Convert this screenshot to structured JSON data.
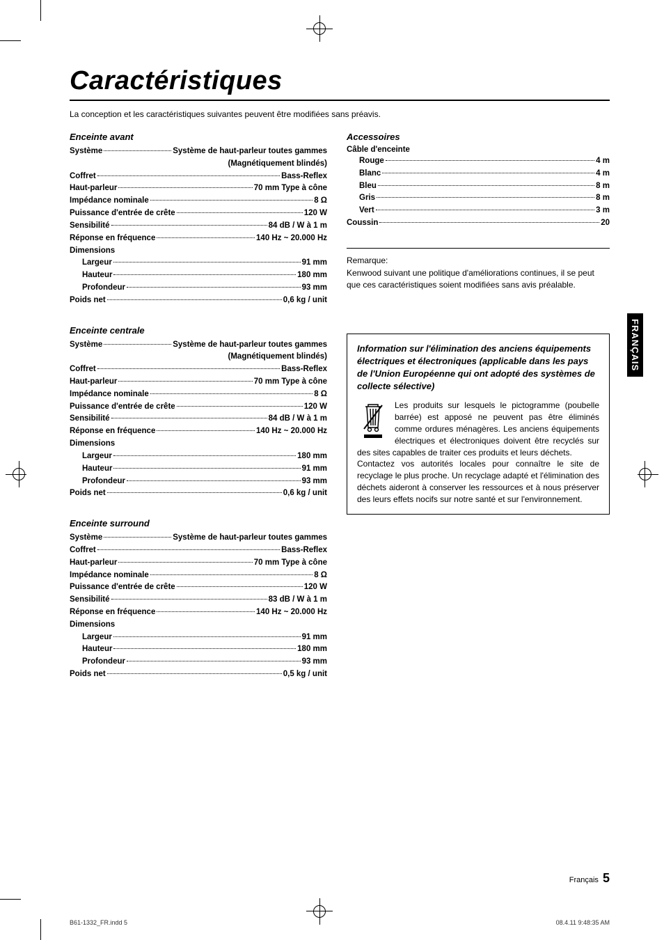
{
  "lang_tab": "FRANÇAIS",
  "title": "Caractéristiques",
  "intro": "La conception et les caractéristiques suivantes peuvent être modifiées sans préavis.",
  "sections": {
    "front": {
      "title": "Enceinte avant",
      "lines": [
        {
          "l": "Système",
          "v": "Système de haut-parleur toutes gammes"
        },
        {
          "right": "(Magnétiquement blindés)"
        },
        {
          "l": "Coffret",
          "v": "Bass-Reflex"
        },
        {
          "l": "Haut-parleur",
          "v": "70 mm Type à cône"
        },
        {
          "l": "Impédance nominale",
          "v": "8 Ω"
        },
        {
          "l": "Puissance d'entrée de crête",
          "v": "120 W"
        },
        {
          "l": "Sensibilité",
          "v": "84 dB / W à 1 m"
        },
        {
          "l": "Réponse en fréquence",
          "v": "140 Hz ~ 20.000 Hz"
        },
        {
          "header": "Dimensions"
        },
        {
          "l": "Largeur",
          "v": "91 mm",
          "indent": true
        },
        {
          "l": "Hauteur",
          "v": "180 mm",
          "indent": true
        },
        {
          "l": "Profondeur",
          "v": "93 mm",
          "indent": true
        },
        {
          "l": "Poids net",
          "v": "0,6 kg / unit"
        }
      ]
    },
    "center": {
      "title": "Enceinte centrale",
      "lines": [
        {
          "l": "Système",
          "v": "Système de haut-parleur toutes gammes"
        },
        {
          "right": "(Magnétiquement blindés)"
        },
        {
          "l": "Coffret",
          "v": "Bass-Reflex"
        },
        {
          "l": "Haut-parleur",
          "v": "70 mm Type à cône"
        },
        {
          "l": "Impédance nominale",
          "v": "8 Ω"
        },
        {
          "l": "Puissance d'entrée de crête",
          "v": "120 W"
        },
        {
          "l": "Sensibilité",
          "v": "84 dB / W à 1 m"
        },
        {
          "l": "Réponse en fréquence",
          "v": "140 Hz ~ 20.000 Hz"
        },
        {
          "header": "Dimensions"
        },
        {
          "l": "Largeur",
          "v": "180 mm",
          "indent": true
        },
        {
          "l": "Hauteur",
          "v": "91 mm",
          "indent": true
        },
        {
          "l": "Profondeur",
          "v": "93 mm",
          "indent": true
        },
        {
          "l": "Poids net",
          "v": "0,6 kg / unit"
        }
      ]
    },
    "surround": {
      "title": "Enceinte surround",
      "lines": [
        {
          "l": "Système",
          "v": "Système de haut-parleur toutes gammes"
        },
        {
          "l": "Coffret",
          "v": "Bass-Reflex"
        },
        {
          "l": "Haut-parleur",
          "v": "70 mm Type à cône"
        },
        {
          "l": "Impédance nominale",
          "v": "8 Ω"
        },
        {
          "l": "Puissance d'entrée de crête",
          "v": "120 W"
        },
        {
          "l": "Sensibilité",
          "v": "83 dB / W à 1 m"
        },
        {
          "l": "Réponse en fréquence",
          "v": "140 Hz ~ 20.000 Hz"
        },
        {
          "header": "Dimensions"
        },
        {
          "l": "Largeur",
          "v": "91 mm",
          "indent": true
        },
        {
          "l": "Hauteur",
          "v": "180 mm",
          "indent": true
        },
        {
          "l": "Profondeur",
          "v": "93 mm",
          "indent": true
        },
        {
          "l": "Poids net",
          "v": "0,5 kg / unit"
        }
      ]
    },
    "accessories": {
      "title": "Accessoires",
      "sub": "Câble d'enceinte",
      "lines": [
        {
          "l": "Rouge",
          "v": "4 m",
          "indent": true
        },
        {
          "l": "Blanc",
          "v": "4 m",
          "indent": true
        },
        {
          "l": "Bleu",
          "v": "8 m",
          "indent": true
        },
        {
          "l": "Gris",
          "v": "8 m",
          "indent": true
        },
        {
          "l": "Vert",
          "v": "3 m",
          "indent": true
        },
        {
          "l": "Coussin",
          "v": "20"
        }
      ]
    }
  },
  "remark": {
    "label": "Remarque:",
    "body": "Kenwood suivant une politique d'améliorations continues, il se peut que ces caractéristiques soient modifiées sans avis préalable."
  },
  "weee": {
    "title": "Information sur l'élimination des anciens équipements électriques et électroniques (applicable dans les pays de l'Union Européenne qui ont adopté des systèmes de collecte sélective)",
    "body1": "Les produits sur lesquels le pictogramme (poubelle barrée) est apposé ne peuvent pas être éliminés comme ordures ménagères. Les anciens équipements électriques et électroniques doivent être recyclés sur des sites capables de traiter ces produits et leurs déchets.",
    "body2": "Contactez vos autorités locales pour connaître le site de recyclage le plus proche. Un recyclage adapté et l'élimination des déchets aideront à conserver les ressources et à nous préserver des leurs effets nocifs sur notre santé et sur l'environnement."
  },
  "footer": {
    "lang": "Français",
    "page": "5",
    "print_l": "B61-1332_FR.indd   5",
    "print_r": "08.4.11   9:48:35 AM"
  }
}
